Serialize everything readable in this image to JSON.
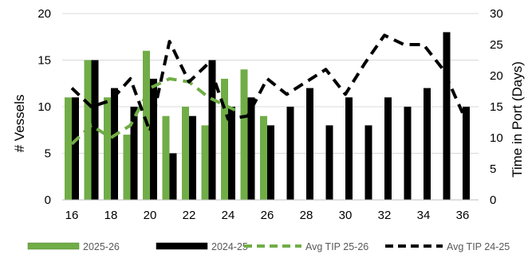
{
  "chart_data": {
    "type": "bar",
    "title": "",
    "xlabel": "",
    "ylabel": "# Vessels",
    "y2label": "Time in Port (Days)",
    "ylim": [
      0,
      20
    ],
    "y2lim": [
      0,
      30
    ],
    "x_ticks": [
      "16",
      "18",
      "20",
      "22",
      "24",
      "26",
      "28",
      "30",
      "32",
      "34",
      "36"
    ],
    "y_ticks": [
      "0",
      "5",
      "10",
      "15",
      "20"
    ],
    "y2_ticks": [
      "0",
      "5",
      "10",
      "15",
      "20",
      "25",
      "30"
    ],
    "grid": true,
    "legend_position": "bottom",
    "x": [
      16,
      17,
      18,
      19,
      20,
      21,
      22,
      23,
      24,
      25,
      26,
      27,
      28,
      29,
      30,
      31,
      32,
      33,
      34,
      35,
      36
    ],
    "series": [
      {
        "name": "2025-26",
        "type": "bar",
        "axis": "left",
        "color": "#70ad47",
        "values": [
          11,
          15,
          11,
          7,
          16,
          9,
          10,
          8,
          13,
          14,
          9,
          null,
          null,
          null,
          null,
          null,
          null,
          null,
          null,
          null,
          null
        ]
      },
      {
        "name": "2024-25",
        "type": "bar",
        "axis": "left",
        "color": "#000000",
        "values": [
          11,
          15,
          12,
          10,
          13,
          5,
          9,
          15,
          10,
          11,
          8,
          10,
          12,
          8,
          11,
          8,
          11,
          10,
          12,
          18,
          10
        ]
      },
      {
        "name": "Avg TIP 25-26",
        "type": "line",
        "axis": "right",
        "style": "dashed",
        "color": "#70ad47",
        "values": [
          9,
          12,
          10,
          12,
          18,
          19.5,
          19,
          16.5,
          15,
          13.5,
          null,
          null,
          null,
          null,
          null,
          null,
          null,
          null,
          null,
          null,
          null
        ]
      },
      {
        "name": "Avg TIP 24-25",
        "type": "line",
        "axis": "right",
        "style": "dashed",
        "color": "#000000",
        "values": [
          18,
          15,
          16,
          19.5,
          11,
          25.5,
          19,
          22,
          13,
          13.5,
          19.5,
          17,
          19,
          21,
          17,
          22,
          26.5,
          25,
          25,
          21,
          14
        ]
      }
    ]
  }
}
